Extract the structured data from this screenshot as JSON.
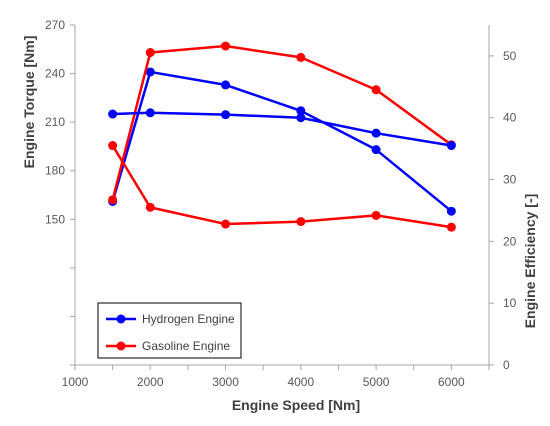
{
  "chart_data": {
    "type": "line",
    "xlabel": "Engine Speed [Nm]",
    "ylabel_left": "Engine Torque [Nm]",
    "ylabel_right": "Engine Efficiency [-]",
    "xlim": [
      1000,
      6500
    ],
    "x_ticks": [
      "1000",
      "2000",
      "3000",
      "4000",
      "5000",
      "6000"
    ],
    "left_ticks": [
      "150",
      "180",
      "210",
      "240",
      "270"
    ],
    "right_ticks": [
      "0",
      "10",
      "20",
      "30",
      "40",
      "50"
    ],
    "ylim_left": [
      60,
      270
    ],
    "ylim_right": [
      0,
      55
    ],
    "grid": false,
    "legend_position": "bottom-left",
    "colors": {
      "hydrogen": "#0000ff",
      "gasoline": "#ff0000"
    },
    "series": [
      {
        "name": "Hydrogen Engine",
        "axis": "left",
        "x": [
          1500,
          2000,
          3000,
          4000,
          5000,
          6000
        ],
        "values": [
          161,
          241,
          233,
          217,
          193,
          155
        ]
      },
      {
        "name": "Gasoline Engine",
        "axis": "left",
        "x": [
          1500,
          2000,
          3000,
          4000,
          5000,
          6000
        ],
        "values": [
          162,
          253,
          257,
          250,
          230,
          196
        ]
      },
      {
        "name": "Hydrogen Engine",
        "axis": "right",
        "x": [
          1500,
          2000,
          3000,
          4000,
          5000,
          6000
        ],
        "values": [
          40.6,
          40.8,
          40.5,
          40.0,
          37.5,
          35.5
        ]
      },
      {
        "name": "Gasoline Engine",
        "axis": "right",
        "x": [
          1500,
          2000,
          3000,
          4000,
          5000,
          6000
        ],
        "values": [
          35.5,
          25.5,
          22.8,
          23.2,
          24.2,
          22.3
        ]
      }
    ],
    "legend": [
      {
        "label": "Hydrogen Engine",
        "color": "#0000ff"
      },
      {
        "label": "Gasoline Engine",
        "color": "#ff0000"
      }
    ]
  }
}
